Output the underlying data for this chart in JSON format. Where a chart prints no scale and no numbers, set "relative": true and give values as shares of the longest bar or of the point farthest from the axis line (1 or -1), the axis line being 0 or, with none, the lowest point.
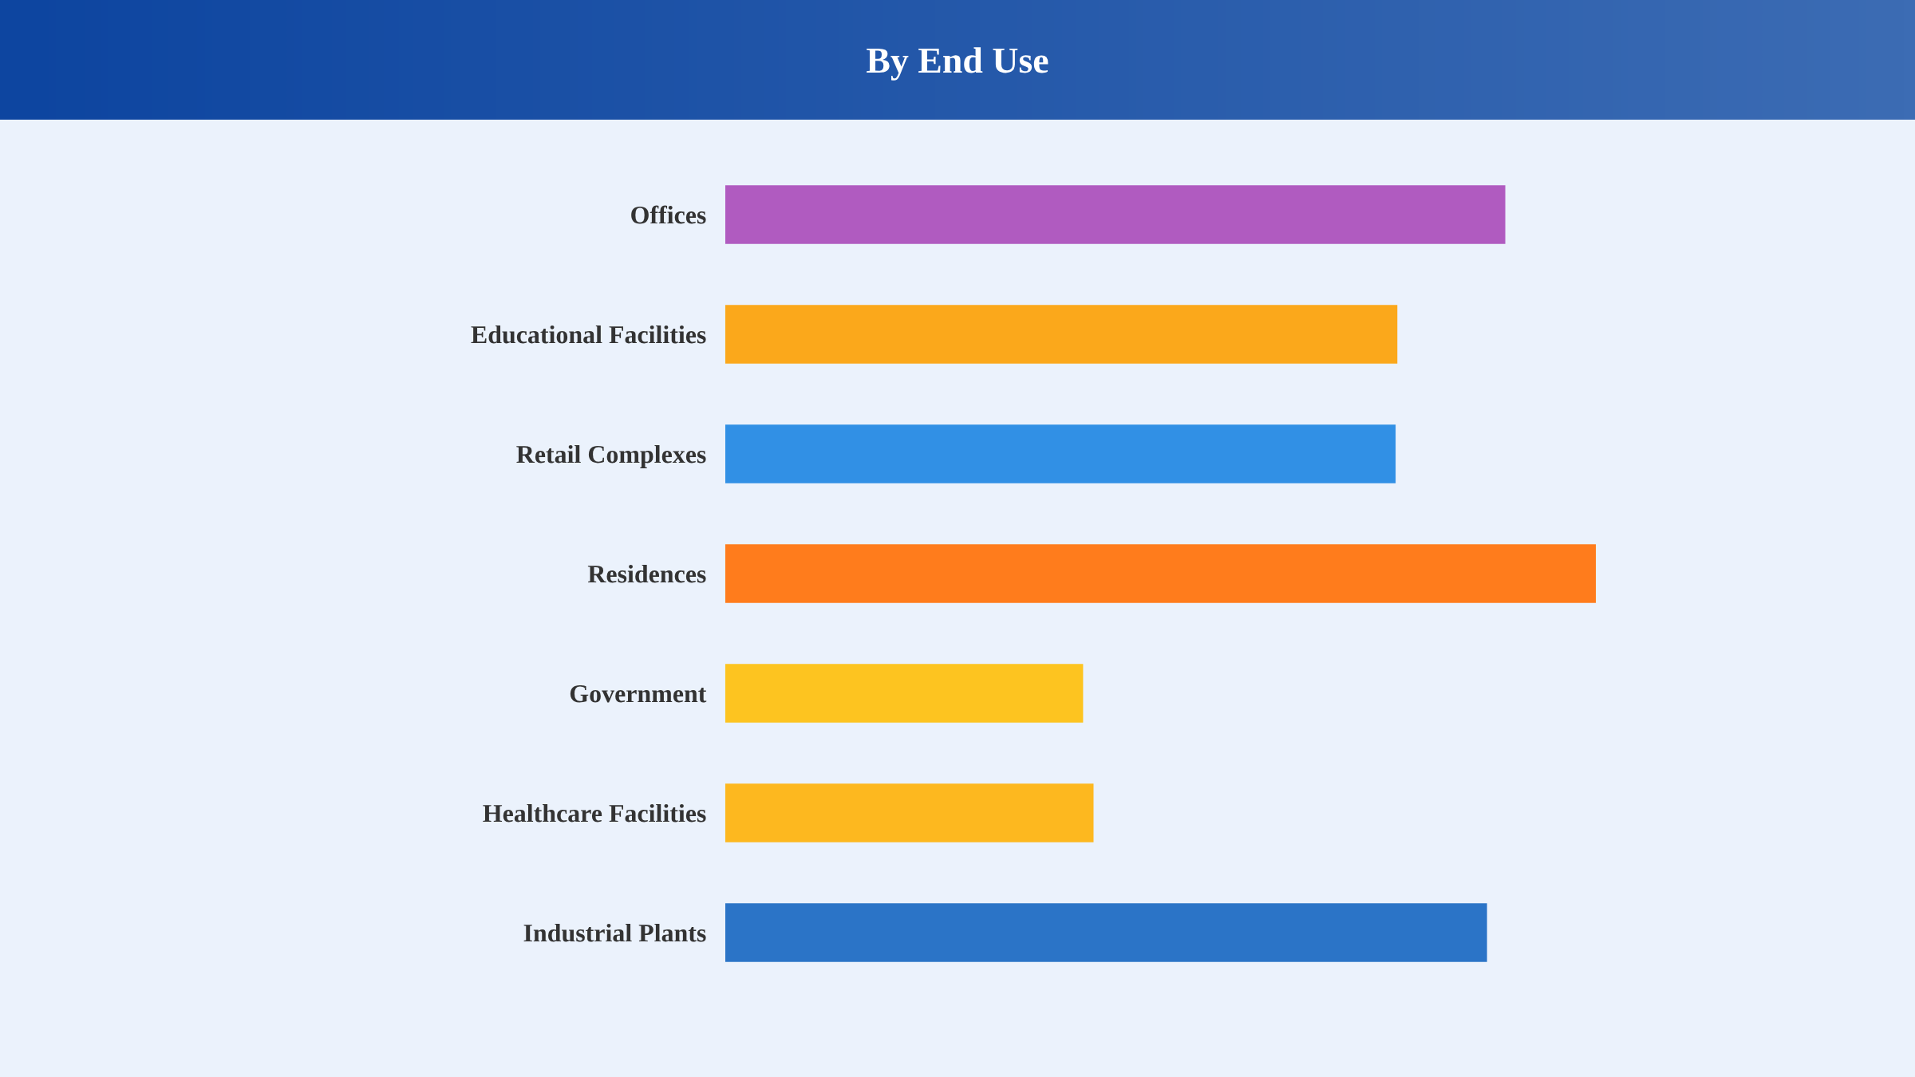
{
  "chart_data": {
    "type": "bar",
    "title": "By End Use",
    "orientation": "horizontal",
    "relative": true,
    "tick_labels": "y",
    "grid": false,
    "categories": [
      "Offices",
      "Educational Facilities",
      "Retail Complexes",
      "Residences",
      "Government",
      "Healthcare Facilities",
      "Industrial Plants"
    ],
    "values": [
      0.896,
      0.772,
      0.77,
      1,
      0.411,
      0.423,
      0.875
    ],
    "colors": [
      "#b05bc0",
      "#fba81b",
      "#3190e5",
      "#ff7c1c",
      "#fdc420",
      "#fdb81f",
      "#2b74c7"
    ]
  }
}
